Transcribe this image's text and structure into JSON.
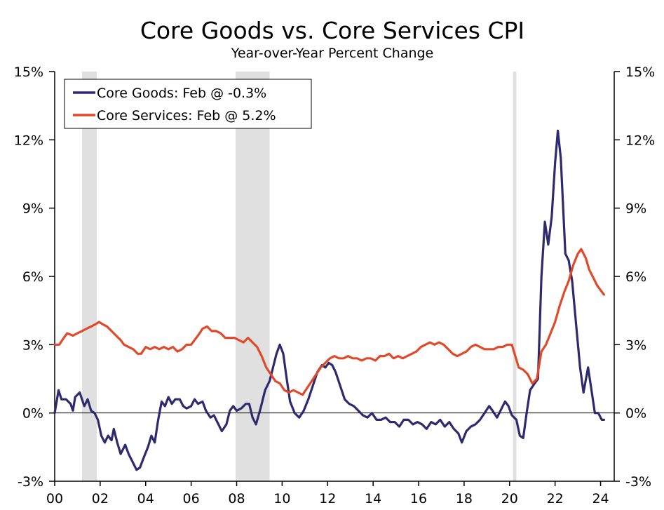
{
  "chart_data": {
    "type": "line",
    "title": "Core Goods vs. Core Services CPI",
    "subtitle": "Year-over-Year Percent Change",
    "xlabel": "",
    "ylabel": "",
    "x_ticks": [
      "00",
      "02",
      "04",
      "06",
      "08",
      "10",
      "12",
      "14",
      "16",
      "18",
      "20",
      "22",
      "24"
    ],
    "xlim": [
      2000.0,
      2024.6
    ],
    "ylim": [
      -3,
      15
    ],
    "y_ticks": [
      -3,
      0,
      3,
      6,
      9,
      12,
      15
    ],
    "y_tick_labels": [
      "-3%",
      "0%",
      "3%",
      "6%",
      "9%",
      "12%",
      "15%"
    ],
    "dual_y_axis": true,
    "grid": false,
    "zero_line": true,
    "legend_position": "top-left",
    "recessions": [
      [
        2001.2,
        2001.85
      ],
      [
        2007.95,
        2009.45
      ],
      [
        2020.15,
        2020.3
      ]
    ],
    "series": [
      {
        "name": "Core Goods: Feb @ -0.3%",
        "color": "#2e2a6e",
        "points": [
          [
            2000.0,
            0.0
          ],
          [
            2000.17,
            1.0
          ],
          [
            2000.3,
            0.6
          ],
          [
            2000.5,
            0.6
          ],
          [
            2000.7,
            0.4
          ],
          [
            2000.8,
            0.1
          ],
          [
            2000.9,
            0.7
          ],
          [
            2001.1,
            0.9
          ],
          [
            2001.3,
            0.3
          ],
          [
            2001.45,
            0.6
          ],
          [
            2001.6,
            0.1
          ],
          [
            2001.75,
            0.0
          ],
          [
            2001.9,
            -0.3
          ],
          [
            2002.05,
            -1.0
          ],
          [
            2002.2,
            -1.3
          ],
          [
            2002.35,
            -1.0
          ],
          [
            2002.5,
            -1.2
          ],
          [
            2002.6,
            -0.7
          ],
          [
            2002.75,
            -1.3
          ],
          [
            2002.9,
            -1.8
          ],
          [
            2003.1,
            -1.4
          ],
          [
            2003.25,
            -1.8
          ],
          [
            2003.45,
            -2.2
          ],
          [
            2003.6,
            -2.5
          ],
          [
            2003.75,
            -2.4
          ],
          [
            2003.9,
            -2.0
          ],
          [
            2004.1,
            -1.5
          ],
          [
            2004.25,
            -1.0
          ],
          [
            2004.4,
            -1.3
          ],
          [
            2004.55,
            -0.3
          ],
          [
            2004.7,
            0.5
          ],
          [
            2004.85,
            0.3
          ],
          [
            2005.0,
            0.7
          ],
          [
            2005.15,
            0.4
          ],
          [
            2005.3,
            0.6
          ],
          [
            2005.5,
            0.6
          ],
          [
            2005.65,
            0.3
          ],
          [
            2005.8,
            0.2
          ],
          [
            2006.0,
            0.3
          ],
          [
            2006.15,
            0.6
          ],
          [
            2006.3,
            0.4
          ],
          [
            2006.5,
            0.5
          ],
          [
            2006.65,
            0.1
          ],
          [
            2006.85,
            -0.2
          ],
          [
            2007.0,
            -0.1
          ],
          [
            2007.15,
            -0.4
          ],
          [
            2007.35,
            -0.8
          ],
          [
            2007.55,
            -0.5
          ],
          [
            2007.7,
            0.1
          ],
          [
            2007.85,
            0.3
          ],
          [
            2008.0,
            0.1
          ],
          [
            2008.2,
            0.2
          ],
          [
            2008.4,
            0.4
          ],
          [
            2008.55,
            0.4
          ],
          [
            2008.7,
            -0.2
          ],
          [
            2008.85,
            -0.5
          ],
          [
            2009.05,
            0.2
          ],
          [
            2009.25,
            1.0
          ],
          [
            2009.45,
            1.4
          ],
          [
            2009.6,
            2.0
          ],
          [
            2009.75,
            2.6
          ],
          [
            2009.9,
            3.0
          ],
          [
            2010.05,
            2.6
          ],
          [
            2010.2,
            1.5
          ],
          [
            2010.35,
            0.5
          ],
          [
            2010.55,
            0.0
          ],
          [
            2010.75,
            -0.2
          ],
          [
            2010.95,
            0.1
          ],
          [
            2011.15,
            0.6
          ],
          [
            2011.35,
            1.2
          ],
          [
            2011.55,
            1.8
          ],
          [
            2011.75,
            2.1
          ],
          [
            2011.9,
            2.0
          ],
          [
            2012.05,
            2.2
          ],
          [
            2012.2,
            2.1
          ],
          [
            2012.35,
            1.8
          ],
          [
            2012.55,
            1.2
          ],
          [
            2012.75,
            0.6
          ],
          [
            2012.95,
            0.4
          ],
          [
            2013.15,
            0.3
          ],
          [
            2013.35,
            0.1
          ],
          [
            2013.55,
            -0.1
          ],
          [
            2013.75,
            -0.2
          ],
          [
            2013.95,
            0.0
          ],
          [
            2014.15,
            -0.3
          ],
          [
            2014.35,
            -0.3
          ],
          [
            2014.55,
            -0.2
          ],
          [
            2014.75,
            -0.4
          ],
          [
            2014.95,
            -0.4
          ],
          [
            2015.15,
            -0.6
          ],
          [
            2015.35,
            -0.3
          ],
          [
            2015.55,
            -0.3
          ],
          [
            2015.75,
            -0.5
          ],
          [
            2015.95,
            -0.4
          ],
          [
            2016.15,
            -0.5
          ],
          [
            2016.35,
            -0.7
          ],
          [
            2016.55,
            -0.4
          ],
          [
            2016.75,
            -0.5
          ],
          [
            2016.95,
            -0.3
          ],
          [
            2017.15,
            -0.6
          ],
          [
            2017.35,
            -0.4
          ],
          [
            2017.55,
            -0.7
          ],
          [
            2017.75,
            -0.9
          ],
          [
            2017.9,
            -1.3
          ],
          [
            2018.1,
            -0.8
          ],
          [
            2018.3,
            -0.6
          ],
          [
            2018.5,
            -0.5
          ],
          [
            2018.7,
            -0.3
          ],
          [
            2018.9,
            0.0
          ],
          [
            2019.1,
            0.3
          ],
          [
            2019.25,
            0.1
          ],
          [
            2019.45,
            -0.2
          ],
          [
            2019.65,
            0.2
          ],
          [
            2019.8,
            0.5
          ],
          [
            2019.95,
            0.3
          ],
          [
            2020.1,
            -0.1
          ],
          [
            2020.3,
            -0.3
          ],
          [
            2020.45,
            -1.0
          ],
          [
            2020.6,
            -1.1
          ],
          [
            2020.75,
            0.0
          ],
          [
            2020.9,
            1.0
          ],
          [
            2021.1,
            1.3
          ],
          [
            2021.25,
            1.5
          ],
          [
            2021.4,
            6.0
          ],
          [
            2021.55,
            8.4
          ],
          [
            2021.7,
            7.4
          ],
          [
            2021.85,
            8.6
          ],
          [
            2022.0,
            11.0
          ],
          [
            2022.12,
            12.4
          ],
          [
            2022.25,
            11.2
          ],
          [
            2022.45,
            7.0
          ],
          [
            2022.6,
            6.7
          ],
          [
            2022.75,
            5.8
          ],
          [
            2022.95,
            3.6
          ],
          [
            2023.1,
            2.0
          ],
          [
            2023.25,
            0.9
          ],
          [
            2023.45,
            2.0
          ],
          [
            2023.6,
            1.0
          ],
          [
            2023.75,
            0.0
          ],
          [
            2023.9,
            0.0
          ],
          [
            2024.05,
            -0.3
          ],
          [
            2024.15,
            -0.3
          ]
        ]
      },
      {
        "name": "Core Services: Feb @ 5.2%",
        "color": "#e04a2a",
        "points": [
          [
            2000.0,
            3.0
          ],
          [
            2000.2,
            3.0
          ],
          [
            2000.4,
            3.3
          ],
          [
            2000.55,
            3.5
          ],
          [
            2000.8,
            3.4
          ],
          [
            2001.0,
            3.5
          ],
          [
            2001.2,
            3.6
          ],
          [
            2001.4,
            3.7
          ],
          [
            2001.6,
            3.8
          ],
          [
            2001.8,
            3.9
          ],
          [
            2001.95,
            4.0
          ],
          [
            2002.1,
            3.9
          ],
          [
            2002.3,
            3.8
          ],
          [
            2002.5,
            3.6
          ],
          [
            2002.7,
            3.4
          ],
          [
            2002.9,
            3.2
          ],
          [
            2003.05,
            3.0
          ],
          [
            2003.25,
            2.9
          ],
          [
            2003.45,
            2.8
          ],
          [
            2003.65,
            2.6
          ],
          [
            2003.8,
            2.6
          ],
          [
            2004.0,
            2.9
          ],
          [
            2004.2,
            2.8
          ],
          [
            2004.4,
            2.9
          ],
          [
            2004.6,
            2.8
          ],
          [
            2004.8,
            2.9
          ],
          [
            2005.0,
            2.8
          ],
          [
            2005.2,
            2.9
          ],
          [
            2005.4,
            2.7
          ],
          [
            2005.6,
            2.8
          ],
          [
            2005.8,
            3.0
          ],
          [
            2006.0,
            3.0
          ],
          [
            2006.15,
            3.2
          ],
          [
            2006.3,
            3.4
          ],
          [
            2006.5,
            3.7
          ],
          [
            2006.7,
            3.8
          ],
          [
            2006.9,
            3.6
          ],
          [
            2007.1,
            3.6
          ],
          [
            2007.3,
            3.5
          ],
          [
            2007.5,
            3.3
          ],
          [
            2007.7,
            3.3
          ],
          [
            2007.9,
            3.3
          ],
          [
            2008.1,
            3.2
          ],
          [
            2008.3,
            3.1
          ],
          [
            2008.5,
            3.3
          ],
          [
            2008.7,
            3.1
          ],
          [
            2008.9,
            2.9
          ],
          [
            2009.1,
            2.5
          ],
          [
            2009.3,
            2.0
          ],
          [
            2009.5,
            1.7
          ],
          [
            2009.7,
            1.4
          ],
          [
            2009.9,
            1.3
          ],
          [
            2010.1,
            1.0
          ],
          [
            2010.3,
            0.9
          ],
          [
            2010.5,
            1.0
          ],
          [
            2010.7,
            0.9
          ],
          [
            2010.9,
            0.8
          ],
          [
            2011.1,
            1.1
          ],
          [
            2011.3,
            1.4
          ],
          [
            2011.5,
            1.7
          ],
          [
            2011.7,
            2.0
          ],
          [
            2011.9,
            2.2
          ],
          [
            2012.1,
            2.4
          ],
          [
            2012.3,
            2.5
          ],
          [
            2012.5,
            2.4
          ],
          [
            2012.7,
            2.4
          ],
          [
            2012.9,
            2.5
          ],
          [
            2013.1,
            2.4
          ],
          [
            2013.3,
            2.4
          ],
          [
            2013.5,
            2.3
          ],
          [
            2013.7,
            2.4
          ],
          [
            2013.9,
            2.4
          ],
          [
            2014.1,
            2.3
          ],
          [
            2014.3,
            2.5
          ],
          [
            2014.5,
            2.5
          ],
          [
            2014.7,
            2.6
          ],
          [
            2014.9,
            2.4
          ],
          [
            2015.1,
            2.5
          ],
          [
            2015.3,
            2.4
          ],
          [
            2015.5,
            2.5
          ],
          [
            2015.7,
            2.6
          ],
          [
            2015.9,
            2.7
          ],
          [
            2016.1,
            2.9
          ],
          [
            2016.3,
            3.0
          ],
          [
            2016.5,
            3.1
          ],
          [
            2016.7,
            3.0
          ],
          [
            2016.9,
            3.1
          ],
          [
            2017.1,
            3.0
          ],
          [
            2017.3,
            2.8
          ],
          [
            2017.5,
            2.6
          ],
          [
            2017.7,
            2.5
          ],
          [
            2017.9,
            2.6
          ],
          [
            2018.1,
            2.7
          ],
          [
            2018.3,
            2.9
          ],
          [
            2018.5,
            3.0
          ],
          [
            2018.7,
            2.9
          ],
          [
            2018.9,
            2.8
          ],
          [
            2019.1,
            2.8
          ],
          [
            2019.3,
            2.8
          ],
          [
            2019.5,
            2.9
          ],
          [
            2019.7,
            2.9
          ],
          [
            2019.9,
            3.0
          ],
          [
            2020.1,
            3.0
          ],
          [
            2020.25,
            2.5
          ],
          [
            2020.4,
            2.0
          ],
          [
            2020.6,
            1.9
          ],
          [
            2020.8,
            1.7
          ],
          [
            2021.0,
            1.3
          ],
          [
            2021.2,
            1.5
          ],
          [
            2021.4,
            2.7
          ],
          [
            2021.6,
            3.0
          ],
          [
            2021.8,
            3.5
          ],
          [
            2022.0,
            4.0
          ],
          [
            2022.2,
            4.7
          ],
          [
            2022.4,
            5.3
          ],
          [
            2022.6,
            5.8
          ],
          [
            2022.8,
            6.5
          ],
          [
            2023.0,
            7.0
          ],
          [
            2023.15,
            7.2
          ],
          [
            2023.35,
            6.8
          ],
          [
            2023.5,
            6.3
          ],
          [
            2023.65,
            6.0
          ],
          [
            2023.85,
            5.6
          ],
          [
            2024.0,
            5.4
          ],
          [
            2024.15,
            5.2
          ]
        ]
      }
    ]
  },
  "colors": {
    "recession_shade": "#e0e0e0",
    "axis": "#000000"
  }
}
